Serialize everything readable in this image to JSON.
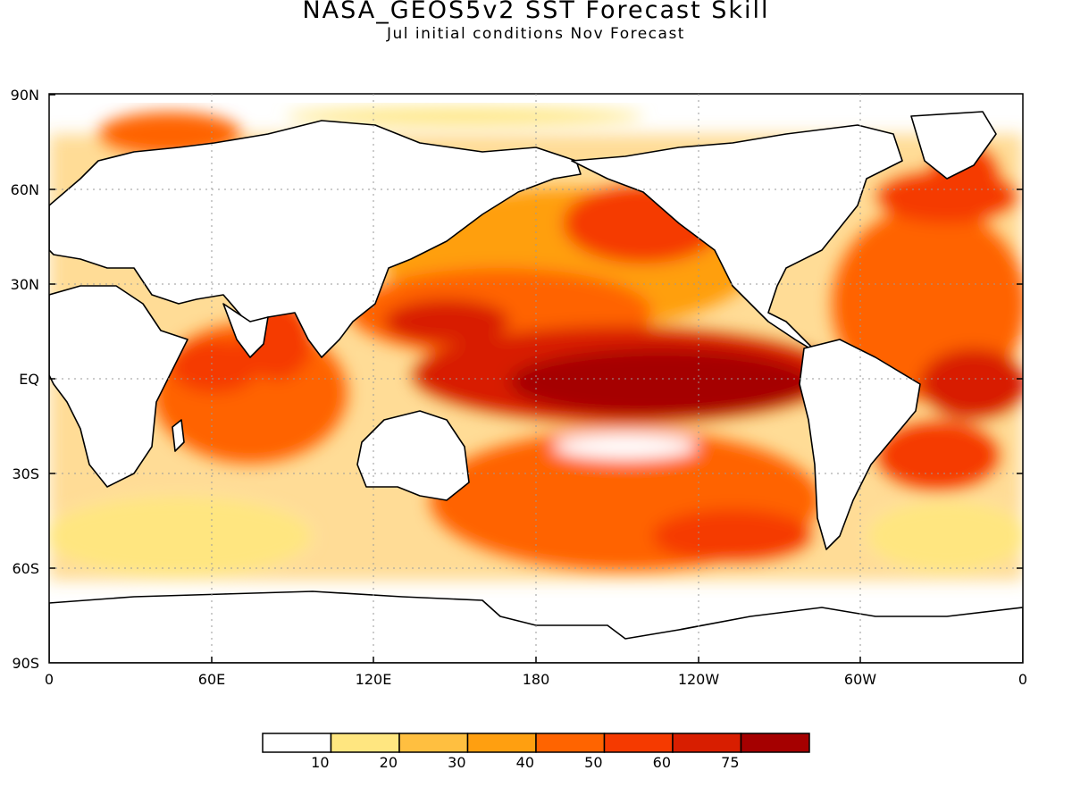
{
  "title": "NASA_GEOS5v2 SST Forecast Skill",
  "subtitle": "Jul initial conditions   Nov Forecast",
  "map": {
    "lat_ticks": [
      "90N",
      "60N",
      "30N",
      "EQ",
      "30S",
      "60S",
      "90S"
    ],
    "lon_ticks": [
      "0",
      "60E",
      "120E",
      "180",
      "120W",
      "60W",
      "0"
    ],
    "gridlines": "dotted"
  },
  "colorbar": {
    "colors": [
      "#ffffff",
      "#ffe680",
      "#ffbf40",
      "#ff9f10",
      "#ff6400",
      "#f53a00",
      "#d81e00",
      "#a50000"
    ],
    "labels": [
      "10",
      "20",
      "30",
      "40",
      "50",
      "60",
      "75"
    ]
  }
}
